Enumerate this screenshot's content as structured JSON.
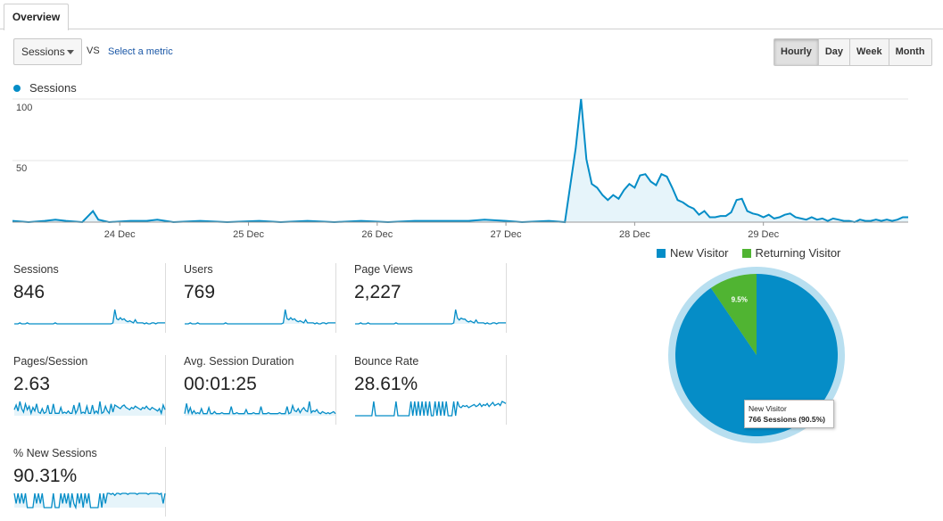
{
  "tabs": [
    {
      "label": "Overview"
    }
  ],
  "controls": {
    "metric_select": "Sessions",
    "vs_label": "VS",
    "select_metric_link": "Select a metric",
    "granularity": [
      "Hourly",
      "Day",
      "Week",
      "Month"
    ],
    "granularity_active": "Hourly"
  },
  "colors": {
    "accent": "#058dc7",
    "area_fill": "#e6f4fa",
    "new_visitor": "#058dc7",
    "returning_visitor": "#50b432",
    "pie_ring": "#b8dff0"
  },
  "chart_data": [
    {
      "type": "area",
      "series": [
        {
          "name": "Sessions"
        }
      ],
      "y_ticks": [
        "100",
        "50"
      ],
      "ylim": [
        0,
        100
      ],
      "x_ticks": [
        "24 Dec",
        "25 Dec",
        "26 Dec",
        "27 Dec",
        "28 Dec",
        "29 Dec"
      ],
      "hours_total": 167,
      "x_tick_hours": [
        20,
        44,
        68,
        92,
        116,
        140
      ],
      "points": [
        [
          0,
          1
        ],
        [
          3,
          0
        ],
        [
          6,
          1
        ],
        [
          8,
          2
        ],
        [
          10,
          1
        ],
        [
          13,
          0
        ],
        [
          15,
          9
        ],
        [
          16,
          2
        ],
        [
          18,
          0
        ],
        [
          22,
          1
        ],
        [
          25,
          1
        ],
        [
          27,
          2
        ],
        [
          30,
          0
        ],
        [
          35,
          1
        ],
        [
          40,
          0
        ],
        [
          46,
          1
        ],
        [
          50,
          0
        ],
        [
          55,
          1
        ],
        [
          60,
          0
        ],
        [
          65,
          1
        ],
        [
          70,
          0
        ],
        [
          75,
          1
        ],
        [
          80,
          1
        ],
        [
          85,
          1
        ],
        [
          88,
          2
        ],
        [
          92,
          1
        ],
        [
          95,
          0
        ],
        [
          100,
          1
        ],
        [
          103,
          0
        ],
        [
          105,
          60
        ],
        [
          106,
          100
        ],
        [
          107,
          51
        ],
        [
          108,
          31
        ],
        [
          109,
          28
        ],
        [
          110,
          22
        ],
        [
          111,
          18
        ],
        [
          112,
          22
        ],
        [
          113,
          19
        ],
        [
          114,
          26
        ],
        [
          115,
          31
        ],
        [
          116,
          28
        ],
        [
          117,
          38
        ],
        [
          118,
          39
        ],
        [
          119,
          33
        ],
        [
          120,
          30
        ],
        [
          121,
          39
        ],
        [
          122,
          37
        ],
        [
          123,
          28
        ],
        [
          124,
          18
        ],
        [
          125,
          16
        ],
        [
          126,
          13
        ],
        [
          127,
          11
        ],
        [
          128,
          6
        ],
        [
          129,
          9
        ],
        [
          130,
          4
        ],
        [
          131,
          4
        ],
        [
          132,
          5
        ],
        [
          133,
          5
        ],
        [
          134,
          8
        ],
        [
          135,
          18
        ],
        [
          136,
          19
        ],
        [
          137,
          9
        ],
        [
          138,
          7
        ],
        [
          139,
          6
        ],
        [
          140,
          4
        ],
        [
          141,
          6
        ],
        [
          142,
          3
        ],
        [
          143,
          4
        ],
        [
          144,
          6
        ],
        [
          145,
          7
        ],
        [
          146,
          4
        ],
        [
          147,
          3
        ],
        [
          148,
          2
        ],
        [
          149,
          4
        ],
        [
          150,
          2
        ],
        [
          151,
          3
        ],
        [
          152,
          1
        ],
        [
          153,
          3
        ],
        [
          154,
          2
        ],
        [
          155,
          1
        ],
        [
          156,
          1
        ],
        [
          157,
          0
        ],
        [
          158,
          2
        ],
        [
          159,
          1
        ],
        [
          160,
          1
        ],
        [
          161,
          2
        ],
        [
          162,
          1
        ],
        [
          163,
          2
        ],
        [
          164,
          1
        ],
        [
          165,
          2
        ],
        [
          166,
          4
        ],
        [
          167,
          4
        ]
      ]
    },
    {
      "type": "pie",
      "legend": [
        "New Visitor",
        "Returning Visitor"
      ],
      "slices": [
        {
          "label": "New Visitor",
          "value": 90.5,
          "color": "#058dc7"
        },
        {
          "label": "Returning Visitor",
          "value": 9.5,
          "color": "#50b432"
        }
      ],
      "returning_label": "9.5%"
    }
  ],
  "tooltip": {
    "title": "New Visitor",
    "value": "766 Sessions (90.5%)"
  },
  "metrics": [
    {
      "label": "Sessions",
      "value": "846",
      "spark": [
        0,
        0,
        0,
        1,
        0,
        0,
        0,
        1,
        0,
        0,
        0,
        0,
        0,
        0,
        0,
        0,
        0,
        0,
        0,
        0,
        0,
        0,
        1,
        0,
        0,
        0,
        0,
        0,
        0,
        0,
        0,
        0,
        0,
        0,
        0,
        0,
        0,
        0,
        0,
        0,
        0,
        0,
        0,
        0,
        0,
        0,
        0,
        0,
        0,
        0,
        0,
        0,
        0,
        1,
        14,
        5,
        4,
        6,
        4,
        5,
        3,
        2,
        3,
        2,
        1,
        4,
        1,
        1,
        1,
        1,
        0,
        1,
        0,
        0,
        1,
        1,
        0,
        1,
        1,
        1,
        1,
        1
      ],
      "fill": true
    },
    {
      "label": "Users",
      "value": "769",
      "spark": [
        0,
        0,
        0,
        1,
        0,
        0,
        0,
        1,
        0,
        0,
        0,
        0,
        0,
        0,
        0,
        0,
        0,
        0,
        0,
        0,
        0,
        0,
        1,
        0,
        0,
        0,
        0,
        0,
        0,
        0,
        0,
        0,
        0,
        0,
        0,
        0,
        0,
        0,
        0,
        0,
        0,
        0,
        0,
        0,
        0,
        0,
        0,
        0,
        0,
        0,
        0,
        0,
        0,
        1,
        14,
        5,
        4,
        6,
        4,
        5,
        3,
        2,
        3,
        2,
        1,
        4,
        1,
        1,
        1,
        1,
        0,
        1,
        0,
        0,
        1,
        1,
        0,
        1,
        1,
        1,
        1,
        1
      ],
      "fill": true
    },
    {
      "label": "Page Views",
      "value": "2,227",
      "spark": [
        0,
        0,
        0,
        1,
        0,
        0,
        0,
        1,
        0,
        0,
        0,
        0,
        0,
        0,
        0,
        0,
        0,
        0,
        0,
        0,
        0,
        0,
        1,
        0,
        0,
        0,
        0,
        0,
        0,
        0,
        0,
        0,
        0,
        0,
        0,
        0,
        0,
        0,
        0,
        0,
        0,
        0,
        0,
        0,
        0,
        0,
        0,
        0,
        0,
        0,
        0,
        0,
        0,
        1,
        15,
        6,
        4,
        6,
        5,
        5,
        3,
        2,
        3,
        2,
        1,
        4,
        1,
        1,
        1,
        1,
        0,
        1,
        0,
        0,
        1,
        1,
        0,
        1,
        1,
        1,
        1,
        1
      ],
      "fill": true
    },
    {
      "label": "Pages/Session",
      "value": "2.63",
      "spark": [
        5,
        9,
        4,
        12,
        6,
        3,
        10,
        5,
        8,
        2,
        7,
        4,
        10,
        3,
        2,
        6,
        2,
        3,
        9,
        2,
        2,
        10,
        2,
        2,
        2,
        7,
        2,
        3,
        2,
        4,
        2,
        2,
        9,
        2,
        5,
        11,
        2,
        3,
        2,
        8,
        2,
        2,
        9,
        2,
        4,
        2,
        12,
        2,
        3,
        8,
        4,
        2,
        10,
        3,
        9,
        8,
        7,
        6,
        8,
        9,
        7,
        6,
        5,
        7,
        6,
        8,
        7,
        6,
        5,
        7,
        6,
        8,
        6,
        5,
        7,
        6,
        5,
        4,
        6,
        2,
        9,
        5
      ],
      "fill": true
    },
    {
      "label": "Avg. Session Duration",
      "value": "00:01:25",
      "spark": [
        2,
        12,
        3,
        8,
        2,
        5,
        2,
        3,
        2,
        7,
        2,
        2,
        2,
        8,
        2,
        2,
        4,
        2,
        2,
        2,
        3,
        2,
        2,
        2,
        2,
        9,
        2,
        2,
        3,
        2,
        2,
        2,
        2,
        6,
        2,
        2,
        2,
        3,
        2,
        2,
        2,
        9,
        2,
        2,
        2,
        3,
        2,
        2,
        2,
        2,
        2,
        3,
        2,
        2,
        2,
        9,
        2,
        3,
        10,
        5,
        4,
        7,
        3,
        6,
        8,
        5,
        4,
        14,
        3,
        5,
        4,
        6,
        3,
        2,
        4,
        3,
        2,
        3,
        2,
        3,
        4,
        2
      ],
      "fill": true
    },
    {
      "label": "Bounce Rate",
      "value": "28.61%",
      "spark": [
        0,
        0,
        0,
        0,
        0,
        0,
        0,
        0,
        0,
        0,
        14,
        0,
        0,
        0,
        0,
        0,
        0,
        0,
        0,
        0,
        0,
        0,
        14,
        0,
        0,
        0,
        0,
        0,
        0,
        0,
        14,
        0,
        14,
        0,
        14,
        0,
        14,
        0,
        14,
        0,
        14,
        0,
        0,
        14,
        0,
        14,
        0,
        14,
        0,
        14,
        0,
        0,
        0,
        14,
        0,
        14,
        9,
        8,
        10,
        9,
        10,
        8,
        9,
        10,
        11,
        9,
        10,
        12,
        9,
        11,
        10,
        12,
        9,
        11,
        13,
        10,
        11,
        12,
        10,
        14,
        13,
        12
      ],
      "fill": false
    },
    {
      "label": "% New Sessions",
      "value": "90.31%",
      "spark": [
        14,
        4,
        14,
        4,
        14,
        4,
        14,
        0,
        0,
        0,
        0,
        14,
        4,
        14,
        4,
        14,
        0,
        0,
        0,
        0,
        0,
        14,
        0,
        0,
        0,
        14,
        4,
        14,
        4,
        14,
        0,
        14,
        4,
        0,
        14,
        4,
        14,
        0,
        14,
        4,
        14,
        0,
        0,
        0,
        0,
        0,
        14,
        0,
        14,
        4,
        14,
        14,
        13,
        14,
        12,
        14,
        14,
        13,
        14,
        14,
        14,
        13,
        14,
        14,
        14,
        14,
        13,
        14,
        14,
        14,
        14,
        14,
        13,
        14,
        14,
        14,
        14,
        14,
        13,
        14,
        4,
        14
      ],
      "fill": true
    }
  ]
}
